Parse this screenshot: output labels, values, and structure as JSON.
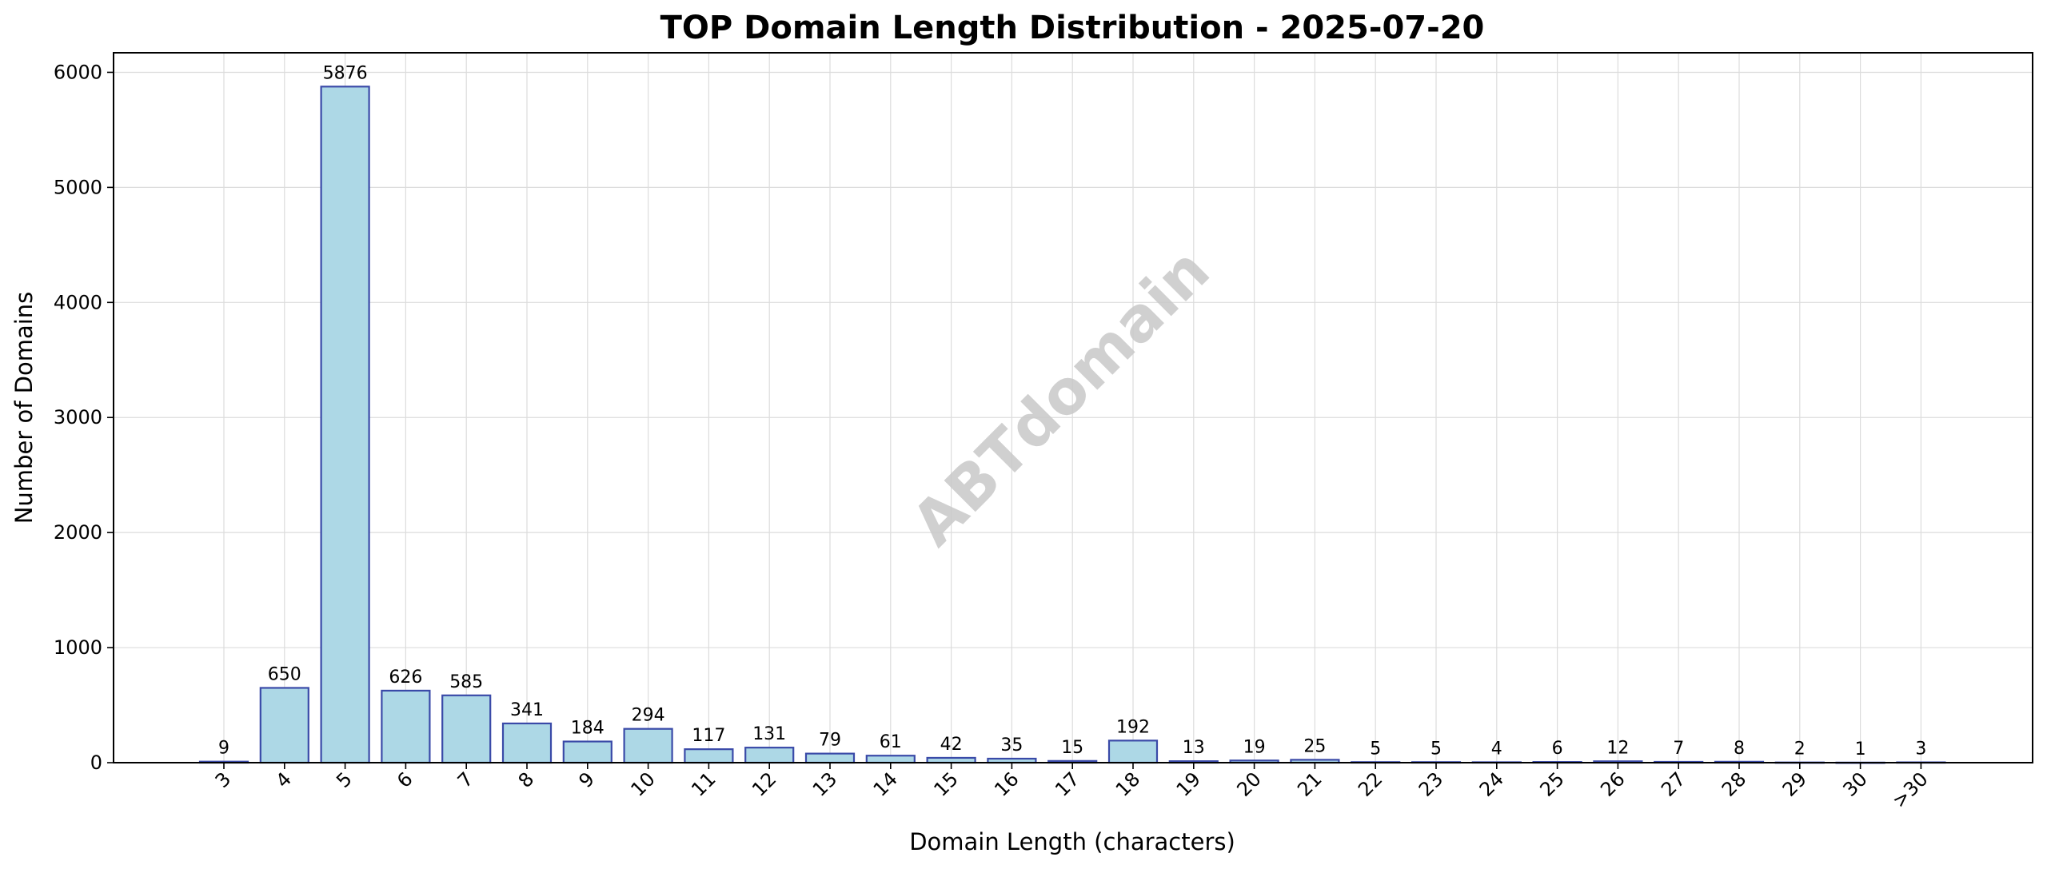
{
  "chart_data": {
    "type": "bar",
    "title": "TOP Domain Length Distribution - 2025-07-20",
    "xlabel": "Domain Length (characters)",
    "ylabel": "Number of Domains",
    "categories": [
      "3",
      "4",
      "5",
      "6",
      "7",
      "8",
      "9",
      "10",
      "11",
      "12",
      "13",
      "14",
      "15",
      "16",
      "17",
      "18",
      "19",
      "20",
      "21",
      "22",
      "23",
      "24",
      "25",
      "26",
      "27",
      "28",
      "29",
      "30",
      ">30"
    ],
    "values": [
      9,
      650,
      5876,
      626,
      585,
      341,
      184,
      294,
      117,
      131,
      79,
      61,
      42,
      35,
      15,
      192,
      13,
      19,
      25,
      5,
      5,
      4,
      6,
      12,
      7,
      8,
      2,
      1,
      3
    ],
    "ylim": [
      0,
      6170
    ],
    "yticks": [
      0,
      1000,
      2000,
      3000,
      4000,
      5000,
      6000
    ],
    "grid": true,
    "bar_color": "#add8e6",
    "bar_edge_color": "#3a4aa8",
    "x_tick_rotation": 45,
    "watermark": "ABTdomain"
  }
}
